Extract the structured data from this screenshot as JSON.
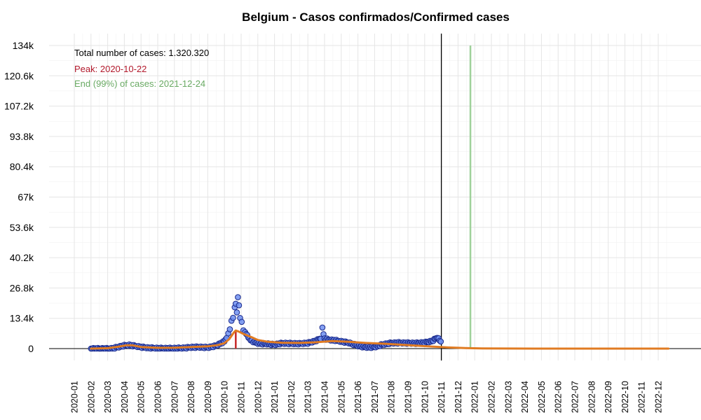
{
  "chart_data": {
    "type": "scatter",
    "title": "Belgium - Casos confirmados/Confirmed cases",
    "xlabel": "",
    "ylabel": "",
    "ylim": [
      0,
      134000
    ],
    "y_ticks": [
      "0",
      "13.4k",
      "26.8k",
      "40.2k",
      "53.6k",
      "67k",
      "80.4k",
      "93.8k",
      "107.2k",
      "120.6k",
      "134k"
    ],
    "x_ticks": [
      "2020-01",
      "2020-02",
      "2020-03",
      "2020-04",
      "2020-05",
      "2020-06",
      "2020-07",
      "2020-08",
      "2020-09",
      "2020-10",
      "2020-11",
      "2020-12",
      "2021-01",
      "2021-02",
      "2021-03",
      "2021-04",
      "2021-05",
      "2021-06",
      "2021-07",
      "2021-08",
      "2021-09",
      "2021-10",
      "2021-11",
      "2021-12",
      "2022-01",
      "2022-02",
      "2022-03",
      "2022-04",
      "2022-05",
      "2022-06",
      "2022-07",
      "2022-08",
      "2022-09",
      "2022-10",
      "2022-11",
      "2022-12"
    ],
    "grid": true,
    "annotations": {
      "total": "Total number of cases: 1.320.320",
      "peak": "Peak: 2020-10-22",
      "end": "End (99%) of cases: 2021-12-24"
    },
    "peak_date": "2020-10-22",
    "peak_value": 8000,
    "end_date": "2021-12-24",
    "cutoff_date": "2021-11-01",
    "series": [
      {
        "kind": "daily_points",
        "points": [
          [
            "2020-02-01",
            0
          ],
          [
            "2020-02-15",
            0
          ],
          [
            "2020-03-01",
            0
          ],
          [
            "2020-03-10",
            100
          ],
          [
            "2020-03-20",
            700
          ],
          [
            "2020-04-01",
            1400
          ],
          [
            "2020-04-10",
            1600
          ],
          [
            "2020-04-20",
            1200
          ],
          [
            "2020-05-01",
            700
          ],
          [
            "2020-05-15",
            350
          ],
          [
            "2020-06-01",
            200
          ],
          [
            "2020-06-15",
            120
          ],
          [
            "2020-07-01",
            150
          ],
          [
            "2020-07-15",
            250
          ],
          [
            "2020-08-01",
            600
          ],
          [
            "2020-08-15",
            700
          ],
          [
            "2020-09-01",
            500
          ],
          [
            "2020-09-15",
            1200
          ],
          [
            "2020-09-25",
            2500
          ],
          [
            "2020-10-01",
            3200
          ],
          [
            "2020-10-05",
            5000
          ],
          [
            "2020-10-08",
            6500
          ],
          [
            "2020-10-11",
            9000
          ],
          [
            "2020-10-14",
            12000
          ],
          [
            "2020-10-17",
            14500
          ],
          [
            "2020-10-20",
            17500
          ],
          [
            "2020-10-22",
            20000
          ],
          [
            "2020-10-24",
            16000
          ],
          [
            "2020-10-26",
            23500
          ],
          [
            "2020-10-28",
            18500
          ],
          [
            "2020-10-30",
            14000
          ],
          [
            "2020-11-02",
            11500
          ],
          [
            "2020-11-05",
            9000
          ],
          [
            "2020-11-08",
            7000
          ],
          [
            "2020-11-12",
            6000
          ],
          [
            "2020-11-16",
            4200
          ],
          [
            "2020-11-20",
            3500
          ],
          [
            "2020-11-25",
            2800
          ],
          [
            "2020-12-01",
            2400
          ],
          [
            "2020-12-10",
            2200
          ],
          [
            "2020-12-20",
            2100
          ],
          [
            "2021-01-01",
            1800
          ],
          [
            "2021-01-15",
            2400
          ],
          [
            "2021-02-01",
            2300
          ],
          [
            "2021-02-15",
            2200
          ],
          [
            "2021-03-01",
            2500
          ],
          [
            "2021-03-15",
            3400
          ],
          [
            "2021-03-25",
            4600
          ],
          [
            "2021-03-28",
            8700
          ],
          [
            "2021-04-01",
            4400
          ],
          [
            "2021-04-10",
            3900
          ],
          [
            "2021-04-20",
            3700
          ],
          [
            "2021-05-01",
            3200
          ],
          [
            "2021-05-15",
            2600
          ],
          [
            "2021-06-01",
            1300
          ],
          [
            "2021-06-15",
            600
          ],
          [
            "2021-07-01",
            700
          ],
          [
            "2021-07-15",
            1800
          ],
          [
            "2021-08-01",
            2500
          ],
          [
            "2021-08-15",
            2600
          ],
          [
            "2021-09-01",
            2500
          ],
          [
            "2021-09-15",
            2400
          ],
          [
            "2021-10-01",
            2700
          ],
          [
            "2021-10-15",
            3400
          ],
          [
            "2021-10-25",
            5000
          ],
          [
            "2021-10-31",
            3000
          ]
        ]
      },
      {
        "kind": "smoothed_fit",
        "points": [
          [
            "2020-02-01",
            0
          ],
          [
            "2020-03-01",
            200
          ],
          [
            "2020-03-20",
            800
          ],
          [
            "2020-04-05",
            1500
          ],
          [
            "2020-04-15",
            1500
          ],
          [
            "2020-05-01",
            700
          ],
          [
            "2020-06-01",
            350
          ],
          [
            "2020-07-01",
            400
          ],
          [
            "2020-08-01",
            700
          ],
          [
            "2020-09-01",
            1000
          ],
          [
            "2020-09-20",
            1600
          ],
          [
            "2020-10-01",
            2400
          ],
          [
            "2020-10-10",
            4200
          ],
          [
            "2020-10-18",
            7000
          ],
          [
            "2020-10-22",
            8000
          ],
          [
            "2020-10-28",
            7500
          ],
          [
            "2020-11-05",
            6500
          ],
          [
            "2020-11-20",
            5000
          ],
          [
            "2020-12-01",
            3800
          ],
          [
            "2020-12-20",
            3000
          ],
          [
            "2021-01-15",
            2600
          ],
          [
            "2021-02-15",
            2500
          ],
          [
            "2021-03-15",
            2800
          ],
          [
            "2021-04-15",
            3300
          ],
          [
            "2021-05-15",
            3000
          ],
          [
            "2021-06-15",
            2500
          ],
          [
            "2021-07-15",
            2200
          ],
          [
            "2021-08-15",
            1800
          ],
          [
            "2021-09-15",
            1300
          ],
          [
            "2021-10-15",
            900
          ],
          [
            "2021-11-15",
            500
          ],
          [
            "2021-12-15",
            250
          ],
          [
            "2022-01-15",
            100
          ],
          [
            "2022-03-01",
            30
          ],
          [
            "2022-06-01",
            0
          ],
          [
            "2022-12-20",
            0
          ]
        ]
      }
    ]
  }
}
